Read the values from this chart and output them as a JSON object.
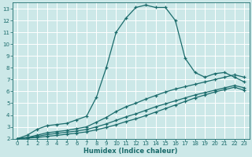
{
  "xlabel": "Humidex (Indice chaleur)",
  "bg_color": "#cce8e8",
  "grid_color": "#ffffff",
  "line_color": "#1a6b6b",
  "xlim": [
    -0.5,
    23.5
  ],
  "ylim": [
    2,
    13.5
  ],
  "xtick_labels": [
    "0",
    "1",
    "2",
    "3",
    "4",
    "5",
    "6",
    "7",
    "8",
    "9",
    "10",
    "11",
    "12",
    "13",
    "14",
    "15",
    "16",
    "17",
    "18",
    "19",
    "20",
    "21",
    "22",
    "23"
  ],
  "yticks": [
    2,
    3,
    4,
    5,
    6,
    7,
    8,
    9,
    10,
    11,
    12,
    13
  ],
  "curve1_x": [
    0,
    1,
    2,
    3,
    4,
    5,
    6,
    7,
    8,
    9,
    10,
    11,
    12,
    13,
    14,
    15,
    16,
    17,
    18,
    19,
    20,
    21,
    22,
    23
  ],
  "curve1_y": [
    2.0,
    2.3,
    2.8,
    3.1,
    3.2,
    3.3,
    3.6,
    3.9,
    5.5,
    8.0,
    11.0,
    12.2,
    13.1,
    13.3,
    13.1,
    13.1,
    12.0,
    8.8,
    7.6,
    7.2,
    7.5,
    7.6,
    7.2,
    6.8
  ],
  "curve2_x": [
    0,
    1,
    2,
    3,
    4,
    5,
    6,
    7,
    8,
    9,
    10,
    11,
    12,
    13,
    14,
    15,
    16,
    17,
    18,
    19,
    20,
    21,
    22,
    23
  ],
  "curve2_y": [
    2.0,
    2.1,
    2.3,
    2.5,
    2.6,
    2.7,
    2.85,
    3.0,
    3.4,
    3.8,
    4.3,
    4.7,
    5.0,
    5.35,
    5.65,
    5.95,
    6.2,
    6.4,
    6.6,
    6.8,
    7.0,
    7.2,
    7.4,
    7.2
  ],
  "curve3_x": [
    0,
    1,
    2,
    3,
    4,
    5,
    6,
    7,
    8,
    9,
    10,
    11,
    12,
    13,
    14,
    15,
    16,
    17,
    18,
    19,
    20,
    21,
    22,
    23
  ],
  "curve3_y": [
    2.0,
    2.1,
    2.2,
    2.35,
    2.45,
    2.55,
    2.65,
    2.78,
    3.0,
    3.25,
    3.55,
    3.85,
    4.1,
    4.4,
    4.7,
    4.95,
    5.2,
    5.45,
    5.7,
    5.9,
    6.1,
    6.3,
    6.5,
    6.3
  ],
  "curve4_x": [
    0,
    1,
    2,
    3,
    4,
    5,
    6,
    7,
    8,
    9,
    10,
    11,
    12,
    13,
    14,
    15,
    16,
    17,
    18,
    19,
    20,
    21,
    22,
    23
  ],
  "curve4_y": [
    2.0,
    2.05,
    2.1,
    2.2,
    2.28,
    2.38,
    2.47,
    2.58,
    2.75,
    2.95,
    3.18,
    3.45,
    3.68,
    3.95,
    4.25,
    4.55,
    4.85,
    5.15,
    5.45,
    5.7,
    5.95,
    6.15,
    6.35,
    6.1
  ]
}
